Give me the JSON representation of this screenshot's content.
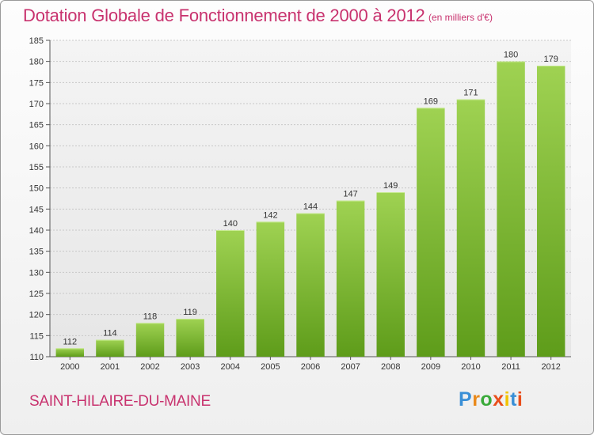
{
  "title": "Dotation Globale de Fonctionnement de 2000 à 2012",
  "unit": "(en milliers d'€)",
  "commune": "SAINT-HILAIRE-DU-MAINE",
  "brand": {
    "text": "Proxiti",
    "letter_colors": [
      "#3a8fd6",
      "#e98a1c",
      "#3aaa3a",
      "#e94e1b",
      "#f2c200",
      "#3a8fd6",
      "#e94e1b"
    ]
  },
  "chart_data": {
    "type": "bar",
    "categories": [
      "2000",
      "2001",
      "2002",
      "2003",
      "2004",
      "2005",
      "2006",
      "2007",
      "2008",
      "2009",
      "2010",
      "2011",
      "2012"
    ],
    "values": [
      112,
      114,
      118,
      119,
      140,
      142,
      144,
      147,
      149,
      169,
      171,
      180,
      179
    ],
    "ylim": [
      110,
      185
    ],
    "yticks": [
      110,
      115,
      120,
      125,
      130,
      135,
      140,
      145,
      150,
      155,
      160,
      165,
      170,
      175,
      180,
      185
    ],
    "grid": true,
    "bar_color_top": "#9fd252",
    "bar_color_bottom": "#5e9c1a"
  }
}
